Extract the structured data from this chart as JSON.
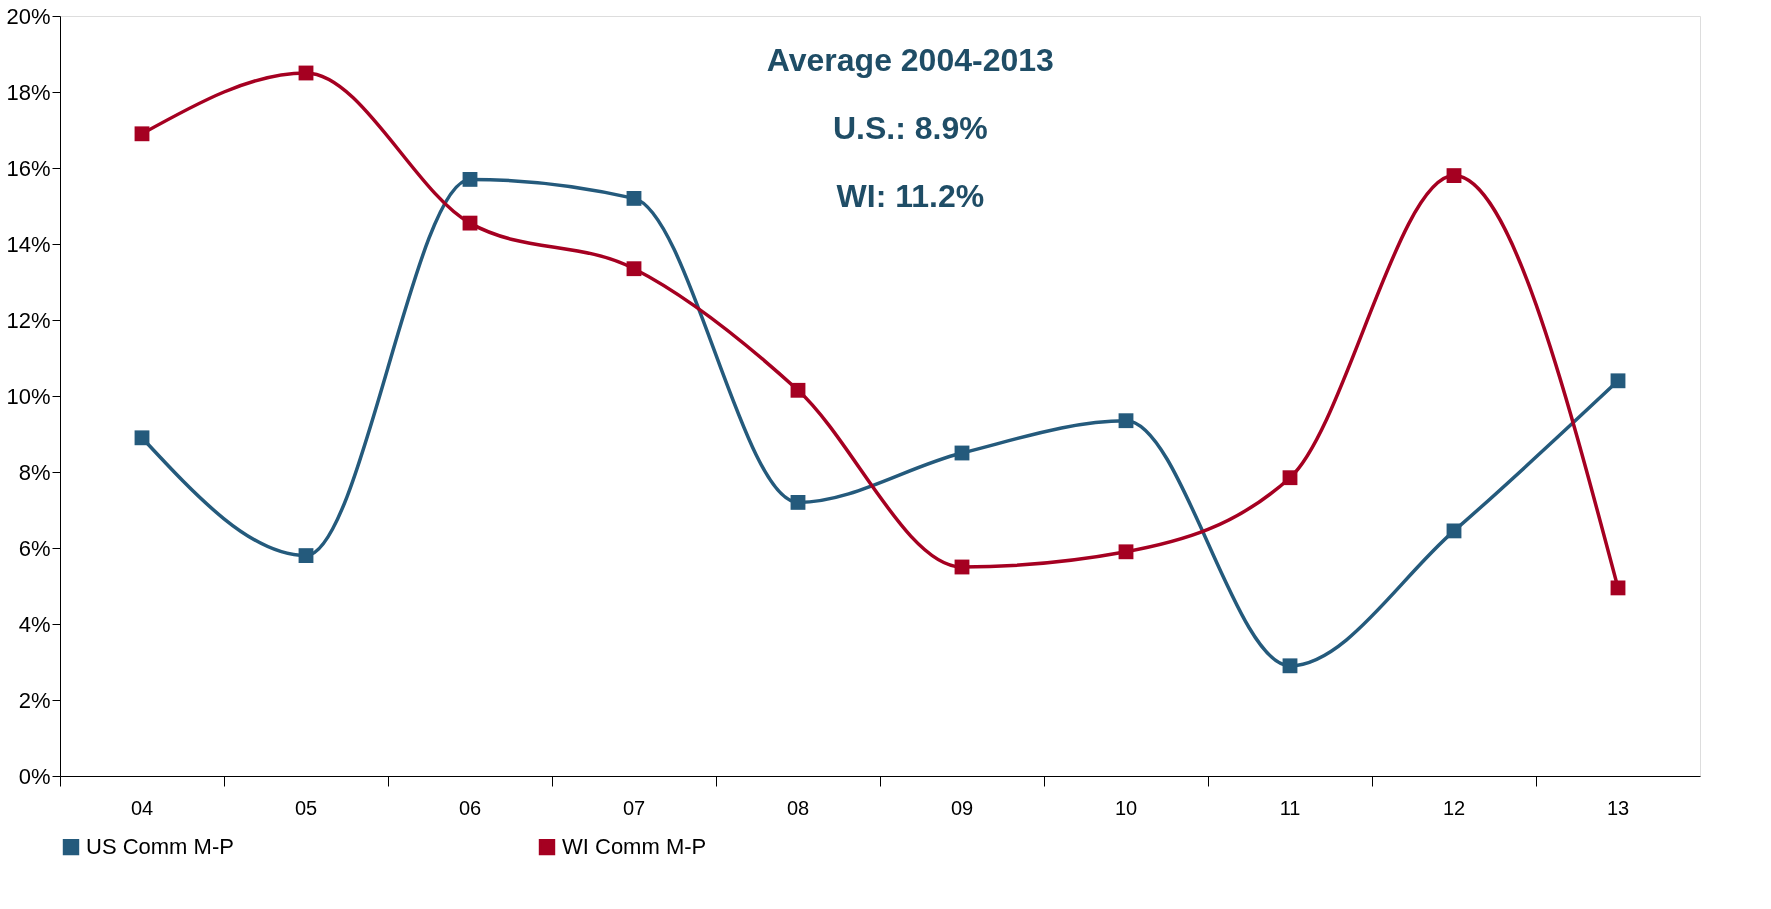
{
  "chart_data": {
    "type": "line",
    "categories": [
      "04",
      "05",
      "06",
      "07",
      "08",
      "09",
      "10",
      "11",
      "12",
      "13"
    ],
    "series": [
      {
        "name": "US Comm M-P",
        "color": "#245a7c",
        "values": [
          8.9,
          5.8,
          15.7,
          15.2,
          7.2,
          8.5,
          9.35,
          2.9,
          6.45,
          10.4
        ]
      },
      {
        "name": "WI Comm M-P",
        "color": "#a50021",
        "values": [
          16.9,
          18.5,
          14.55,
          13.35,
          10.15,
          5.5,
          5.9,
          7.85,
          15.8,
          4.95
        ]
      }
    ],
    "ylim": [
      0,
      20
    ],
    "yticks": [
      {
        "value": 0,
        "label": "0%"
      },
      {
        "value": 2,
        "label": "2%"
      },
      {
        "value": 4,
        "label": "4%"
      },
      {
        "value": 6,
        "label": "6%"
      },
      {
        "value": 8,
        "label": "8%"
      },
      {
        "value": 10,
        "label": "10%"
      },
      {
        "value": 12,
        "label": "12%"
      },
      {
        "value": 14,
        "label": "14%"
      },
      {
        "value": 16,
        "label": "16%"
      },
      {
        "value": 18,
        "label": "18%"
      },
      {
        "value": 20,
        "label": "20%"
      }
    ],
    "annotations": [
      "Average 2004-2013",
      "U.S.: 8.9%",
      "WI: 11.2%"
    ],
    "marker": "square",
    "line_style": "solid",
    "grid": false,
    "legend": "bottom"
  }
}
